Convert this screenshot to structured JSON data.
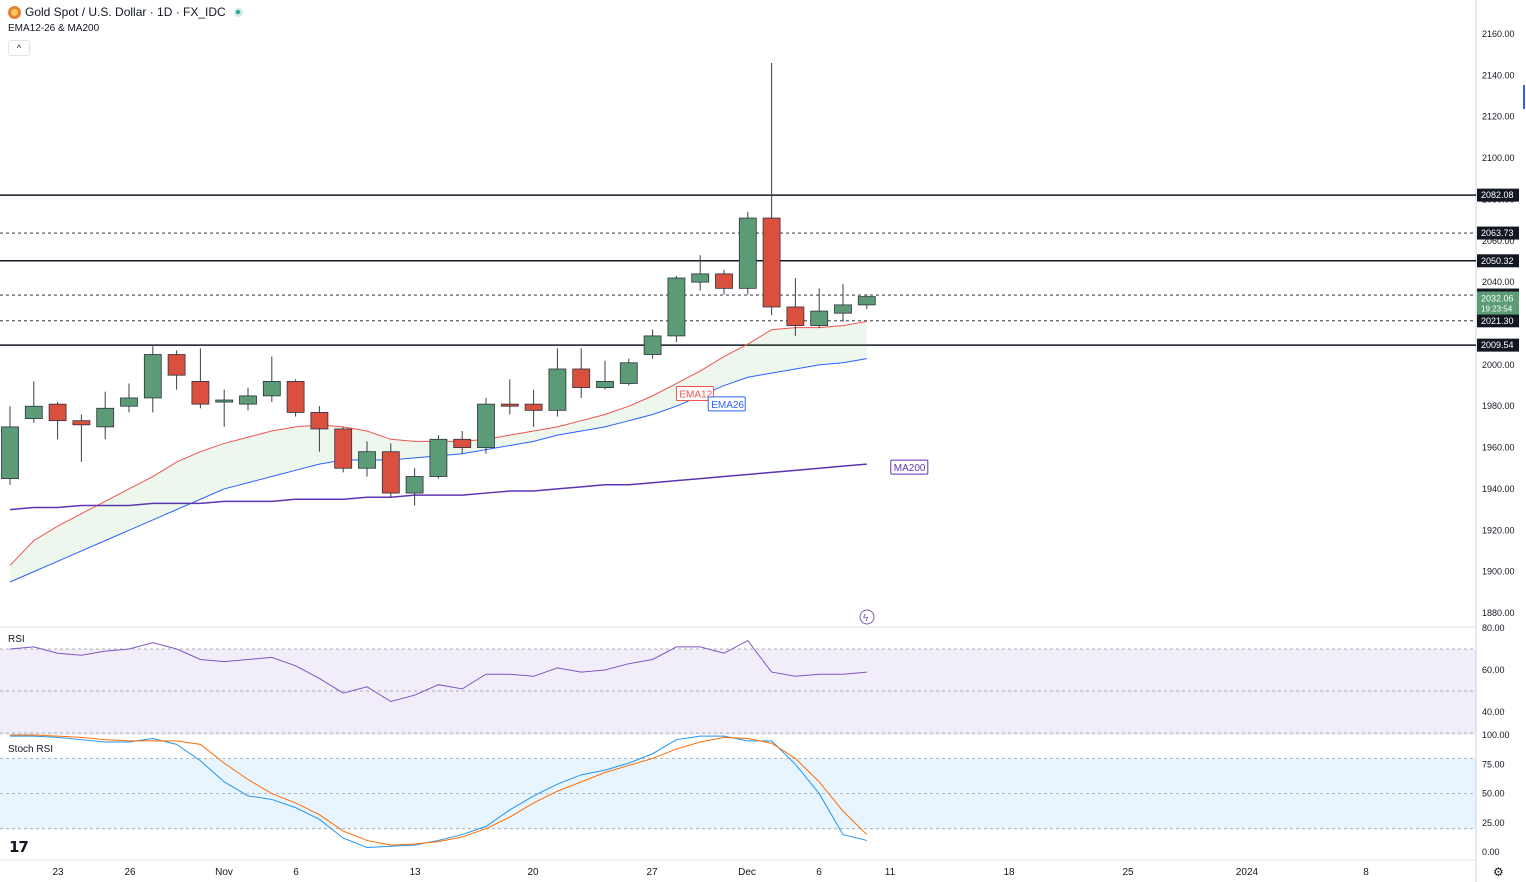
{
  "header": {
    "title": "Gold Spot / U.S. Dollar · 1D · FX_IDC",
    "indicators": "EMA12-26 & MA200",
    "collapse_icon": "^"
  },
  "panes": {
    "rsi_label": "RSI",
    "stoch_label": "Stoch RSI",
    "footer_logo": "17"
  },
  "colors": {
    "up": "#5b9b75",
    "down": "#d9503e",
    "ema12": "#ef5350",
    "ema26": "#2962ff",
    "ma200": "#5e35b1",
    "rsi": "#7e57c2",
    "stoch_k": "#2196f3",
    "stoch_d": "#ff6d00"
  },
  "chart_data": [
    {
      "type": "candlestick",
      "title": "Gold Spot / U.S. Dollar · 1D · FX_IDC",
      "x_ticks": [
        "23",
        "26",
        "Nov",
        "6",
        "13",
        "20",
        "27",
        "Dec",
        "6",
        "11",
        "18",
        "25",
        "2024",
        "8"
      ],
      "y_ticks": [
        "1880.00",
        "1900.00",
        "1920.00",
        "1940.00",
        "1960.00",
        "1980.00",
        "2000.00",
        "2020.00",
        "2040.00",
        "2060.00",
        "2080.00",
        "2100.00",
        "2120.00",
        "2140.00",
        "2160.00"
      ],
      "ylim": [
        1873,
        2173
      ],
      "candles": [
        {
          "o": 1945,
          "h": 1980,
          "l": 1942,
          "c": 1970
        },
        {
          "o": 1974,
          "h": 1992,
          "l": 1972,
          "c": 1980
        },
        {
          "o": 1981,
          "h": 1982,
          "l": 1964,
          "c": 1973
        },
        {
          "o": 1973,
          "h": 1976,
          "l": 1953,
          "c": 1971
        },
        {
          "o": 1970,
          "h": 1987,
          "l": 1964,
          "c": 1979
        },
        {
          "o": 1980,
          "h": 1991,
          "l": 1977,
          "c": 1984
        },
        {
          "o": 1984,
          "h": 2009,
          "l": 1977,
          "c": 2005
        },
        {
          "o": 2005,
          "h": 2007,
          "l": 1988,
          "c": 1995
        },
        {
          "o": 1992,
          "h": 2008,
          "l": 1979,
          "c": 1981
        },
        {
          "o": 1982,
          "h": 1988,
          "l": 1970,
          "c": 1983
        },
        {
          "o": 1981,
          "h": 1989,
          "l": 1978,
          "c": 1985
        },
        {
          "o": 1985,
          "h": 2004,
          "l": 1982,
          "c": 1992
        },
        {
          "o": 1992,
          "h": 1993,
          "l": 1975,
          "c": 1977
        },
        {
          "o": 1977,
          "h": 1980,
          "l": 1958,
          "c": 1969
        },
        {
          "o": 1969,
          "h": 1970,
          "l": 1948,
          "c": 1950
        },
        {
          "o": 1950,
          "h": 1963,
          "l": 1946,
          "c": 1958
        },
        {
          "o": 1958,
          "h": 1962,
          "l": 1936,
          "c": 1938
        },
        {
          "o": 1938,
          "h": 1950,
          "l": 1932,
          "c": 1946
        },
        {
          "o": 1946,
          "h": 1966,
          "l": 1945,
          "c": 1964
        },
        {
          "o": 1964,
          "h": 1968,
          "l": 1957,
          "c": 1960
        },
        {
          "o": 1960,
          "h": 1984,
          "l": 1957,
          "c": 1981
        },
        {
          "o": 1981,
          "h": 1993,
          "l": 1976,
          "c": 1980
        },
        {
          "o": 1981,
          "h": 1988,
          "l": 1970,
          "c": 1978
        },
        {
          "o": 1978,
          "h": 2008,
          "l": 1975,
          "c": 1998
        },
        {
          "o": 1998,
          "h": 2008,
          "l": 1984,
          "c": 1989
        },
        {
          "o": 1989,
          "h": 2002,
          "l": 1988,
          "c": 1992
        },
        {
          "o": 1991,
          "h": 2003,
          "l": 1990,
          "c": 2001
        },
        {
          "o": 2005,
          "h": 2017,
          "l": 2003,
          "c": 2014
        },
        {
          "o": 2014,
          "h": 2043,
          "l": 2011,
          "c": 2042
        },
        {
          "o": 2040,
          "h": 2053,
          "l": 2036,
          "c": 2044
        },
        {
          "o": 2044,
          "h": 2046,
          "l": 2034,
          "c": 2037
        },
        {
          "o": 2037,
          "h": 2074,
          "l": 2034,
          "c": 2071
        },
        {
          "o": 2071,
          "h": 2146,
          "l": 2024,
          "c": 2028
        },
        {
          "o": 2028,
          "h": 2042,
          "l": 2014,
          "c": 2019
        },
        {
          "o": 2019,
          "h": 2037,
          "l": 2018,
          "c": 2026
        },
        {
          "o": 2025,
          "h": 2039,
          "l": 2021,
          "c": 2029
        },
        {
          "o": 2029,
          "h": 2034,
          "l": 2027,
          "c": 2033
        }
      ],
      "series": [
        {
          "name": "EMA12",
          "values": [
            1903,
            1915,
            1922,
            1928,
            1934,
            1940,
            1946,
            1953,
            1958,
            1962,
            1965,
            1968,
            1970,
            1971,
            1970,
            1968,
            1964,
            1963,
            1963,
            1963,
            1964,
            1966,
            1968,
            1970,
            1973,
            1976,
            1980,
            1985,
            1991,
            1997,
            2004,
            2010,
            2017,
            2018,
            2018,
            2019,
            2021
          ]
        },
        {
          "name": "EMA26",
          "values": [
            1895,
            1900,
            1905,
            1910,
            1915,
            1920,
            1925,
            1930,
            1935,
            1940,
            1943,
            1946,
            1949,
            1952,
            1954,
            1954,
            1954,
            1955,
            1956,
            1957,
            1959,
            1961,
            1963,
            1966,
            1968,
            1970,
            1973,
            1976,
            1980,
            1985,
            1990,
            1994,
            1996,
            1998,
            2000,
            2001,
            2003
          ]
        },
        {
          "name": "MA200",
          "values": [
            1930,
            1931,
            1931,
            1932,
            1932,
            1932,
            1933,
            1933,
            1933,
            1934,
            1934,
            1934,
            1935,
            1935,
            1935,
            1936,
            1936,
            1937,
            1937,
            1937,
            1938,
            1939,
            1939,
            1940,
            1941,
            1942,
            1942,
            1943,
            1944,
            1945,
            1946,
            1947,
            1948,
            1949,
            1950,
            1951,
            1952
          ]
        }
      ],
      "horizontal_levels": [
        {
          "value": 2082.08,
          "label": "2082.08",
          "style": "solid"
        },
        {
          "value": 2063.73,
          "label": "2063.73",
          "style": "dashed"
        },
        {
          "value": 2050.32,
          "label": "2050.32",
          "style": "solid"
        },
        {
          "value": 2033.76,
          "label": "2033.76",
          "style": "dashed"
        },
        {
          "value": 2021.3,
          "label": "2021.30",
          "style": "dashed"
        },
        {
          "value": 2009.54,
          "label": "2009.54",
          "style": "solid"
        }
      ],
      "last_price": {
        "value": 2032.06,
        "label": "2032.06",
        "countdown": "19:23:54"
      },
      "annotations": [
        "EMA12",
        "EMA26",
        "MA200"
      ],
      "grid": false
    },
    {
      "type": "line",
      "title": "RSI",
      "y_ticks": [
        "40.00",
        "60.00",
        "80.00"
      ],
      "ylim": [
        30,
        80
      ],
      "band": [
        30,
        70
      ],
      "series": [
        {
          "name": "RSI",
          "values": [
            70,
            71,
            68,
            67,
            69,
            70,
            73,
            70,
            65,
            64,
            65,
            66,
            62,
            56,
            49,
            52,
            45,
            48,
            53,
            51,
            58,
            58,
            57,
            61,
            59,
            60,
            63,
            65,
            71,
            71,
            68,
            74,
            59,
            57,
            58,
            58,
            59
          ]
        }
      ]
    },
    {
      "type": "line",
      "title": "Stoch RSI",
      "y_ticks": [
        "0.00",
        "25.00",
        "50.00",
        "75.00",
        "100.00"
      ],
      "ylim": [
        -5,
        100
      ],
      "band": [
        20,
        80
      ],
      "series": [
        {
          "name": "K",
          "values": [
            99,
            99,
            98,
            96,
            94,
            94,
            97,
            92,
            78,
            60,
            48,
            45,
            38,
            28,
            12,
            4,
            5,
            6,
            10,
            15,
            22,
            36,
            48,
            58,
            66,
            70,
            76,
            84,
            96,
            99,
            99,
            95,
            95,
            75,
            50,
            15,
            10
          ]
        },
        {
          "name": "D",
          "values": [
            100,
            100,
            99,
            98,
            96,
            95,
            95,
            95,
            92,
            76,
            62,
            50,
            42,
            32,
            18,
            10,
            6,
            7,
            9,
            13,
            20,
            30,
            42,
            52,
            60,
            68,
            74,
            80,
            88,
            94,
            98,
            97,
            93,
            80,
            60,
            35,
            15
          ]
        }
      ]
    }
  ]
}
